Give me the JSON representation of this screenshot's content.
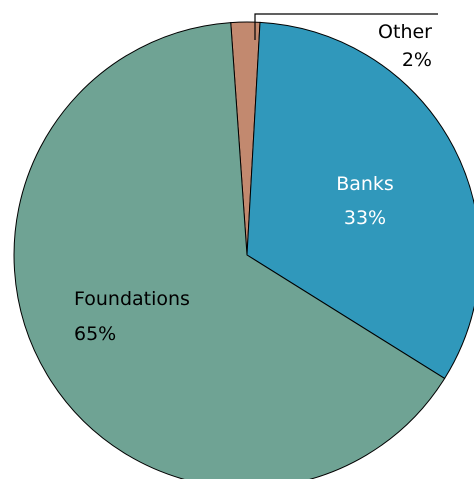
{
  "chart_data": {
    "type": "pie",
    "start_angle_deg": -4,
    "direction": "clockwise",
    "slices": [
      {
        "label": "Other",
        "value_label": "2%",
        "value": 2,
        "color": "#c2896f",
        "text_color": "#000000"
      },
      {
        "label": "Banks",
        "value_label": "33%",
        "value": 33,
        "color": "#3098bb",
        "text_color": "#ffffff"
      },
      {
        "label": "Foundations",
        "value_label": "65%",
        "value": 65,
        "color": "#6fa394",
        "text_color": "#000000"
      }
    ],
    "stroke_color": "#000000"
  }
}
